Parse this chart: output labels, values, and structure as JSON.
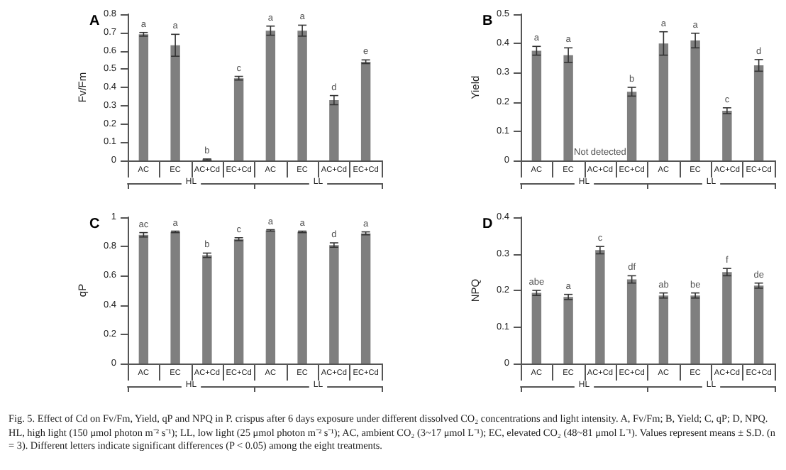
{
  "chart_data": [
    {
      "type": "bar",
      "title": "A",
      "ylabel": "Fv/Fm",
      "categories": [
        "AC",
        "EC",
        "AC+Cd",
        "EC+Cd",
        "AC",
        "EC",
        "AC+Cd",
        "EC+Cd"
      ],
      "color": "#7f7f7f",
      "values": [
        0.69,
        0.63,
        0.005,
        0.45,
        0.71,
        0.71,
        0.33,
        0.54
      ],
      "errors": [
        0.01,
        0.06,
        0.003,
        0.01,
        0.025,
        0.03,
        0.025,
        0.01
      ],
      "value_labels": [
        "a",
        "a",
        "b",
        "c",
        "a",
        "a",
        "d",
        "e"
      ],
      "ylim": [
        0,
        0.8
      ],
      "yticks": [
        0,
        0.1,
        0.2,
        0.3,
        0.4,
        0.5,
        0.6,
        0.7,
        0.8
      ],
      "annotations": [
        "HL",
        "LL"
      ]
    },
    {
      "type": "bar",
      "title": "B",
      "ylabel": "Yield",
      "categories": [
        "AC",
        "EC",
        "AC+Cd",
        "EC+Cd",
        "AC",
        "EC",
        "AC+Cd",
        "EC+Cd"
      ],
      "color": "#7f7f7f",
      "values": [
        0.375,
        0.36,
        null,
        0.235,
        0.4,
        0.41,
        0.17,
        0.325
      ],
      "errors": [
        0.015,
        0.025,
        null,
        0.015,
        0.04,
        0.025,
        0.01,
        0.02
      ],
      "value_labels": [
        "a",
        "a",
        "Not detected",
        "b",
        "a",
        "a",
        "c",
        "d"
      ],
      "ylim": [
        0,
        0.5
      ],
      "yticks": [
        0,
        0.1,
        0.2,
        0.3,
        0.4,
        0.5
      ],
      "annotations": [
        "HL",
        "LL"
      ]
    },
    {
      "type": "bar",
      "title": "C",
      "ylabel": "qP",
      "categories": [
        "AC",
        "EC",
        "AC+Cd",
        "EC+Cd",
        "AC",
        "EC",
        "AC+Cd",
        "EC+Cd"
      ],
      "color": "#7f7f7f",
      "values": [
        0.88,
        0.9,
        0.74,
        0.85,
        0.91,
        0.9,
        0.81,
        0.89
      ],
      "errors": [
        0.015,
        0.005,
        0.015,
        0.01,
        0.005,
        0.005,
        0.015,
        0.01
      ],
      "value_labels": [
        "ac",
        "a",
        "b",
        "c",
        "a",
        "a",
        "d",
        "a"
      ],
      "ylim": [
        0,
        1
      ],
      "yticks": [
        0,
        0.2,
        0.4,
        0.6,
        0.8,
        1
      ],
      "annotations": [
        "HL",
        "LL"
      ]
    },
    {
      "type": "bar",
      "title": "D",
      "ylabel": "NPQ",
      "categories": [
        "AC",
        "EC",
        "AC+Cd",
        "EC+Cd",
        "AC",
        "EC",
        "AC+Cd",
        "EC+Cd"
      ],
      "color": "#7f7f7f",
      "values": [
        0.193,
        0.182,
        0.31,
        0.23,
        0.186,
        0.186,
        0.25,
        0.213
      ],
      "errors": [
        0.007,
        0.007,
        0.01,
        0.01,
        0.007,
        0.007,
        0.01,
        0.007
      ],
      "value_labels": [
        "abe",
        "a",
        "c",
        "df",
        "ab",
        "be",
        "f",
        "de"
      ],
      "ylim": [
        0,
        0.4
      ],
      "yticks": [
        0,
        0.1,
        0.2,
        0.3,
        0.4
      ],
      "annotations": [
        "HL",
        "LL",
        "Fig. 5. Effect of Cd on Fv/Fm, Yield, qP and NPQ in P. crispus after 6 days exposure under different dissolved CO₂ concentrations and light intensity. A, Fv/Fm; B, Yield; C, qP; D, NPQ. HL, high light (150 μmol photon m⁻² s⁻¹); LL, low light (25 μmol photon m⁻² s⁻¹); AC, ambient CO₂ (3~17 μmol L⁻¹); EC, elevated CO₂ (48~81 μmol L⁻¹). Values represent means ± S.D. (n = 3). Different letters indicate significant differences (P < 0.05) among the eight treatments."
      ]
    }
  ]
}
